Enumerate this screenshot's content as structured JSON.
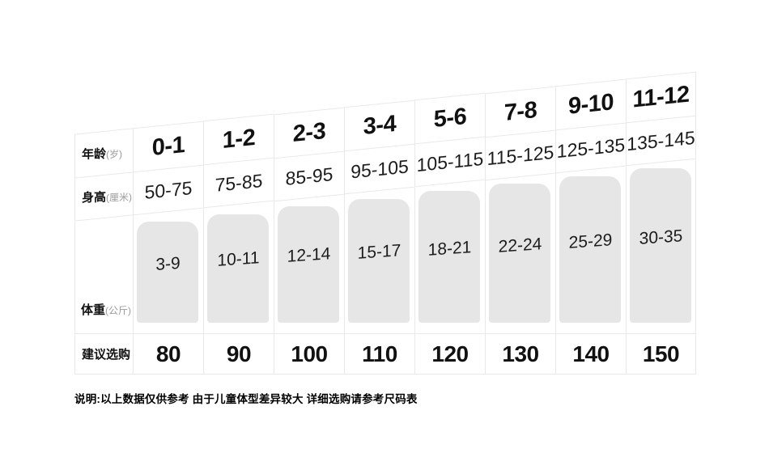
{
  "chart_data": {
    "type": "table",
    "rows": {
      "age": {
        "label": "年龄",
        "unit": "(岁)"
      },
      "height": {
        "label": "身高",
        "unit": "(厘米)"
      },
      "weight": {
        "label": "体重",
        "unit": "(公斤)"
      },
      "size": {
        "label": "建议选购"
      }
    },
    "columns": [
      {
        "age": "0-1",
        "height": "50-75",
        "weight": "3-9",
        "size": "80"
      },
      {
        "age": "1-2",
        "height": "75-85",
        "weight": "10-11",
        "size": "90"
      },
      {
        "age": "2-3",
        "height": "85-95",
        "weight": "12-14",
        "size": "100"
      },
      {
        "age": "3-4",
        "height": "95-105",
        "weight": "15-17",
        "size": "110"
      },
      {
        "age": "5-6",
        "height": "105-115",
        "weight": "18-21",
        "size": "120"
      },
      {
        "age": "7-8",
        "height": "115-125",
        "weight": "22-24",
        "size": "130"
      },
      {
        "age": "9-10",
        "height": "125-135",
        "weight": "25-29",
        "size": "140"
      },
      {
        "age": "11-12",
        "height": "135-145",
        "weight": "30-35",
        "size": "150"
      }
    ],
    "note": "说明:以上数据仅供参考 由于儿童体型差异较大 详细选购请参考尺码表",
    "layout_hint": "staircase size chart, columns rise to the right, weight bars grow taller"
  },
  "colors": {
    "bar_fill": "#e6e6e6",
    "grid_border": "#e9e9e9",
    "unit_text": "#9b9b9b",
    "text": "#111111"
  }
}
